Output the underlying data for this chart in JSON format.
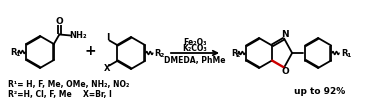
{
  "figsize": [
    3.78,
    1.03
  ],
  "dpi": 100,
  "bg_color": "#ffffff",
  "reagents_line1": "Fe₂O₃",
  "reagents_line2": "K₂CO₃",
  "reagents_line3": "DMEDA, PhMe",
  "yield_text": "up to 92%",
  "r1_text": "R¹= H, F, Me, OMe, NH₂, NO₂",
  "r2_text": "R²=H, Cl, F, Me",
  "x_text": "X=Br, I",
  "text_color": "#000000",
  "bond_color": "#000000",
  "red_color": "#cc0000"
}
